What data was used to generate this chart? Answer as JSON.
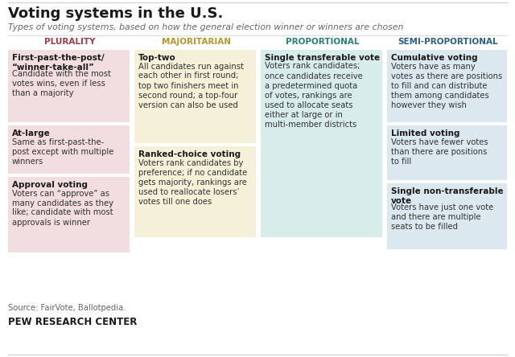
{
  "title": "Voting systems in the U.S.",
  "subtitle": "Types of voting systems, based on how the general election winner or winners are chosen",
  "source": "Source: FairVote, Ballotpedia.",
  "footer": "PEW RESEARCH CENTER",
  "bg_color": "#ffffff",
  "columns": [
    {
      "header": "PLURALITY",
      "header_color": "#a0394a",
      "bg_color": "#f2dde0",
      "items": [
        {
          "title": "First-past-the-post/\n“winner-take-all”",
          "body": "Candidate with the most\nvotes wins, even if less\nthan a majority"
        },
        {
          "title": "At-large",
          "body": "Same as first-past-the-\npost except with multiple\nwinners"
        },
        {
          "title": "Approval voting",
          "body": "Voters can “approve” as\nmany candidates as they\nlike; candidate with most\napprovals is winner"
        }
      ]
    },
    {
      "header": "MAJORITARIAN",
      "header_color": "#b5962e",
      "bg_color": "#f5f0d8",
      "items": [
        {
          "title": "Top-two",
          "body": "All candidates run against\neach other in first round;\ntop two finishers meet in\nsecond round; a top-four\nversion can also be used"
        },
        {
          "title": "Ranked-choice voting",
          "body": "Voters rank candidates by\npreference; if no candidate\ngets majority, rankings are\nused to reallocate losers’\nvotes till one does"
        }
      ]
    },
    {
      "header": "PROPORTIONAL",
      "header_color": "#2a7d7d",
      "bg_color": "#d8ecea",
      "items": [
        {
          "title": "Single transferable vote",
          "body": "Voters rank candidates;\nonce candidates receive\na predetermined quota\nof votes, rankings are\nused to allocate seats\neither at large or in\nmulti-member districts"
        }
      ]
    },
    {
      "header": "SEMI-PROPORTIONAL",
      "header_color": "#2a5f8a",
      "bg_color": "#dce8f0",
      "items": [
        {
          "title": "Cumulative voting",
          "body": "Voters have as many\nvotes as there are positions\nto fill and can distribute\nthem among candidates\nhowever they wish"
        },
        {
          "title": "Limited voting",
          "body": "Voters have fewer votes\nthan there are positions\nto fill"
        },
        {
          "title": "Single non-transferable\nvote",
          "body": "Voters have just one vote\nand there are multiple\nseats to be filled"
        }
      ]
    }
  ]
}
